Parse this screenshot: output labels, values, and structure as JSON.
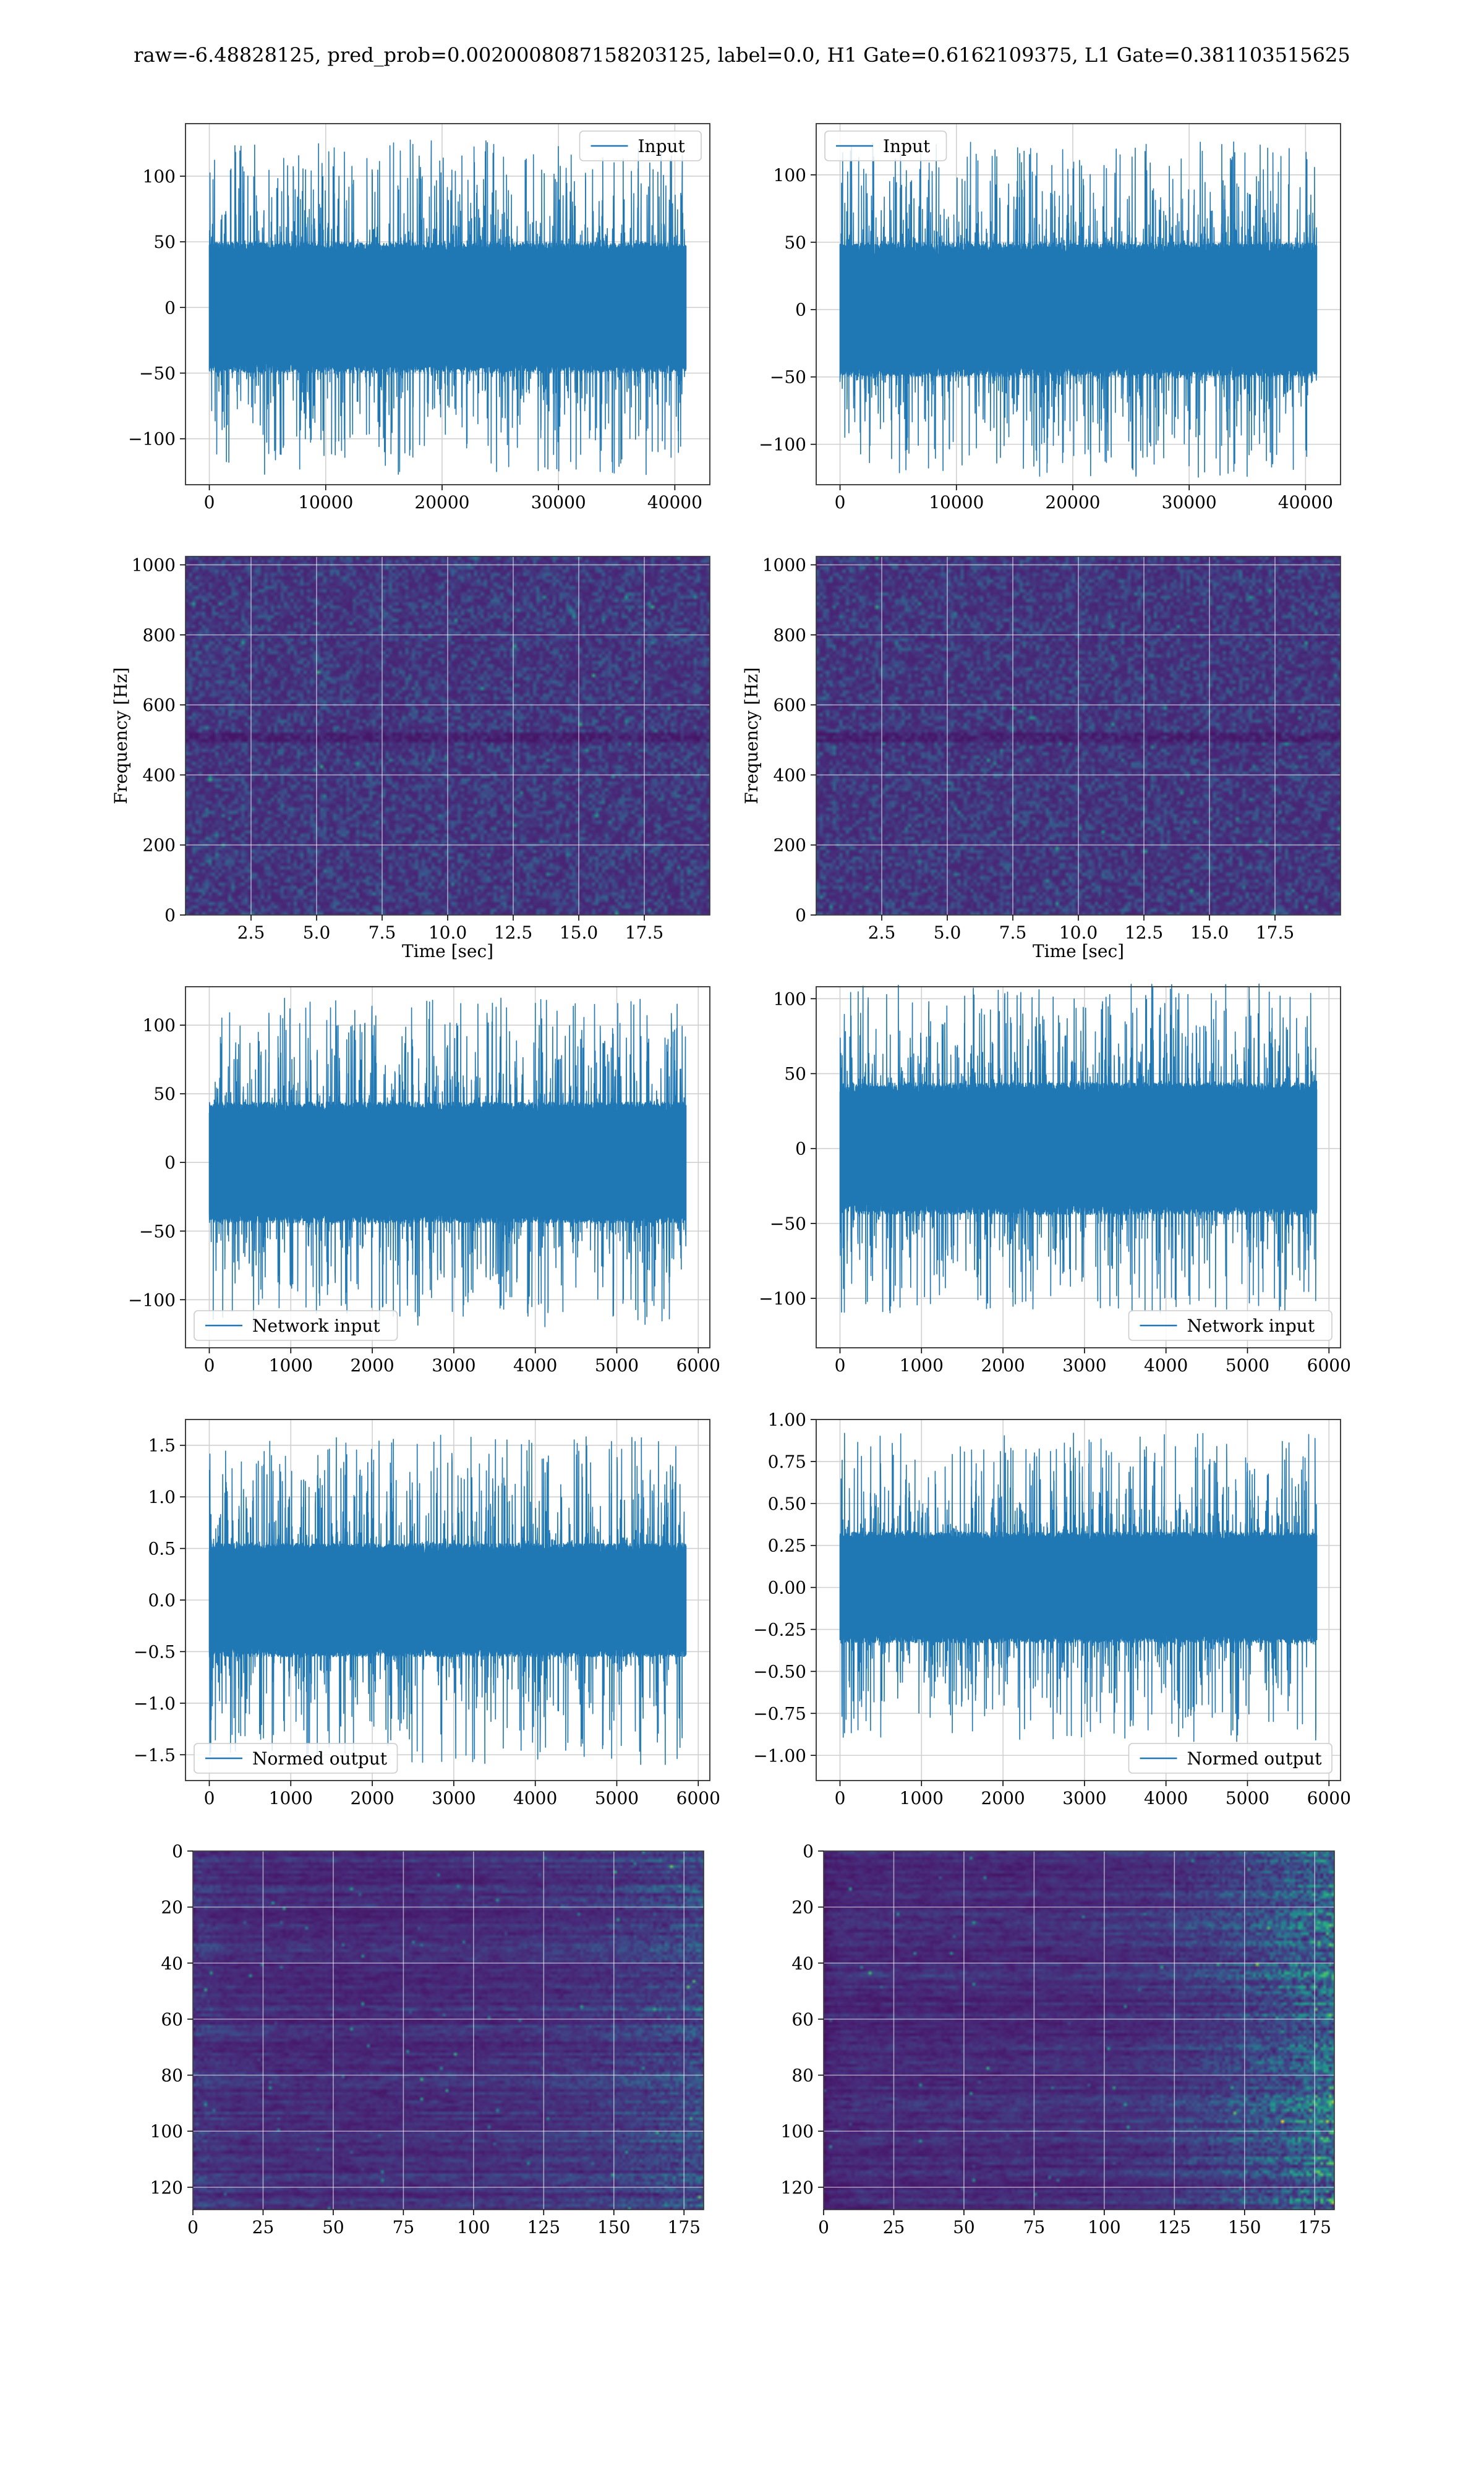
{
  "suptitle": "raw=-6.48828125, pred_prob=0.0020008087158203125, label=0.0, H1 Gate=0.6162109375, L1 Gate=0.381103515625",
  "colors": {
    "line": "#1f77b4",
    "grid": "#d0d0d0",
    "spines": "#333333",
    "viridis": [
      "#440154",
      "#482878",
      "#3e4989",
      "#31688e",
      "#26828e",
      "#1f9e89",
      "#35b779",
      "#6ece58",
      "#b5de2b",
      "#fde725"
    ]
  },
  "chart_data": [
    {
      "id": "input-left",
      "type": "line",
      "series": [
        {
          "name": "Input",
          "amplitude_core": 45,
          "amplitude_peak": 128,
          "n_samples": 40960
        }
      ],
      "legend": "top-right",
      "xlim": [
        -2048,
        43008
      ],
      "ylim": [
        -135,
        140
      ],
      "xticks": [
        0,
        10000,
        20000,
        30000,
        40000
      ],
      "xtick_labels": [
        "0",
        "10000",
        "20000",
        "30000",
        "40000"
      ],
      "yticks": [
        -100,
        -50,
        0,
        50,
        100
      ],
      "ytick_labels": [
        "−100",
        "−50",
        "0",
        "50",
        "100"
      ],
      "xlabel": "",
      "ylabel": "",
      "grid": true
    },
    {
      "id": "input-right",
      "type": "line",
      "series": [
        {
          "name": "Input",
          "amplitude_core": 45,
          "amplitude_peak": 125,
          "n_samples": 40960
        }
      ],
      "legend": "top-left",
      "xlim": [
        -2048,
        43008
      ],
      "ylim": [
        -130,
        138
      ],
      "xticks": [
        0,
        10000,
        20000,
        30000,
        40000
      ],
      "xtick_labels": [
        "0",
        "10000",
        "20000",
        "30000",
        "40000"
      ],
      "yticks": [
        -100,
        -50,
        0,
        50,
        100
      ],
      "ytick_labels": [
        "−100",
        "−50",
        "0",
        "50",
        "100"
      ],
      "xlabel": "",
      "ylabel": "",
      "grid": true
    },
    {
      "id": "spectrogram-left",
      "type": "heatmap",
      "xlim": [
        0,
        20
      ],
      "ylim": [
        0,
        1024
      ],
      "xticks": [
        2.5,
        5,
        7.5,
        10,
        12.5,
        15,
        17.5
      ],
      "xtick_labels": [
        "2.5",
        "5.0",
        "7.5",
        "10.0",
        "12.5",
        "15.0",
        "17.5"
      ],
      "yticks": [
        0,
        200,
        400,
        600,
        800,
        1000
      ],
      "ytick_labels": [
        "0",
        "200",
        "400",
        "600",
        "800",
        "1000"
      ],
      "xlabel": "Time [sec]",
      "ylabel": "Frequency [Hz]",
      "grid": true
    },
    {
      "id": "spectrogram-right",
      "type": "heatmap",
      "xlim": [
        0,
        20
      ],
      "ylim": [
        0,
        1024
      ],
      "xticks": [
        2.5,
        5,
        7.5,
        10,
        12.5,
        15,
        17.5
      ],
      "xtick_labels": [
        "2.5",
        "5.0",
        "7.5",
        "10.0",
        "12.5",
        "15.0",
        "17.5"
      ],
      "yticks": [
        0,
        200,
        400,
        600,
        800,
        1000
      ],
      "ytick_labels": [
        "0",
        "200",
        "400",
        "600",
        "800",
        "1000"
      ],
      "xlabel": "Time [sec]",
      "ylabel": "Frequency [Hz]",
      "grid": true
    },
    {
      "id": "network-input-left",
      "type": "line",
      "series": [
        {
          "name": "Network input",
          "amplitude_core": 40,
          "amplitude_peak": 120,
          "n_samples": 5850
        }
      ],
      "legend": "bottom-left",
      "xlim": [
        -292,
        6142
      ],
      "ylim": [
        -135,
        128
      ],
      "xticks": [
        0,
        1000,
        2000,
        3000,
        4000,
        5000,
        6000
      ],
      "xtick_labels": [
        "0",
        "1000",
        "2000",
        "3000",
        "4000",
        "5000",
        "6000"
      ],
      "yticks": [
        -100,
        -50,
        0,
        50,
        100
      ],
      "ytick_labels": [
        "−100",
        "−50",
        "0",
        "50",
        "100"
      ],
      "xlabel": "",
      "ylabel": "",
      "grid": true
    },
    {
      "id": "network-input-right",
      "type": "line",
      "series": [
        {
          "name": "Network input",
          "amplitude_core": 40,
          "amplitude_peak": 110,
          "n_samples": 5850
        }
      ],
      "legend": "bottom-right",
      "xlim": [
        -292,
        6142
      ],
      "ylim": [
        -133,
        108
      ],
      "xticks": [
        0,
        1000,
        2000,
        3000,
        4000,
        5000,
        6000
      ],
      "xtick_labels": [
        "0",
        "1000",
        "2000",
        "3000",
        "4000",
        "5000",
        "6000"
      ],
      "yticks": [
        -100,
        -50,
        0,
        50,
        100
      ],
      "ytick_labels": [
        "−100",
        "−50",
        "0",
        "50",
        "100"
      ],
      "xlabel": "",
      "ylabel": "",
      "grid": true
    },
    {
      "id": "normed-output-left",
      "type": "line",
      "series": [
        {
          "name": "Normed output",
          "amplitude_core": 0.5,
          "amplitude_peak": 1.6,
          "n_samples": 5850
        }
      ],
      "legend": "bottom-left",
      "xlim": [
        -292,
        6142
      ],
      "ylim": [
        -1.75,
        1.75
      ],
      "xticks": [
        0,
        1000,
        2000,
        3000,
        4000,
        5000,
        6000
      ],
      "xtick_labels": [
        "0",
        "1000",
        "2000",
        "3000",
        "4000",
        "5000",
        "6000"
      ],
      "yticks": [
        -1.5,
        -1.0,
        -0.5,
        0.0,
        0.5,
        1.0,
        1.5
      ],
      "ytick_labels": [
        "−1.5",
        "−1.0",
        "−0.5",
        "0.0",
        "0.5",
        "1.0",
        "1.5"
      ],
      "xlabel": "",
      "ylabel": "",
      "grid": true
    },
    {
      "id": "normed-output-right",
      "type": "line",
      "series": [
        {
          "name": "Normed output",
          "amplitude_core": 0.3,
          "amplitude_peak": 0.92,
          "n_samples": 5850
        }
      ],
      "legend": "bottom-right",
      "xlim": [
        -292,
        6142
      ],
      "ylim": [
        -1.15,
        1.0
      ],
      "xticks": [
        0,
        1000,
        2000,
        3000,
        4000,
        5000,
        6000
      ],
      "xtick_labels": [
        "0",
        "1000",
        "2000",
        "3000",
        "4000",
        "5000",
        "6000"
      ],
      "yticks": [
        -1.0,
        -0.75,
        -0.5,
        -0.25,
        0.0,
        0.25,
        0.5,
        0.75,
        1.0
      ],
      "ytick_labels": [
        "−1.00",
        "−0.75",
        "−0.50",
        "−0.25",
        "0.00",
        "0.25",
        "0.50",
        "0.75",
        "1.00"
      ],
      "xlabel": "",
      "ylabel": "",
      "grid": true
    },
    {
      "id": "feature-map-left",
      "type": "heatmap",
      "xlim": [
        0,
        182
      ],
      "ylim": [
        128,
        0
      ],
      "xticks": [
        0,
        25,
        50,
        75,
        100,
        125,
        150,
        175
      ],
      "xtick_labels": [
        "0",
        "25",
        "50",
        "75",
        "100",
        "125",
        "150",
        "175"
      ],
      "yticks": [
        0,
        20,
        40,
        60,
        80,
        100,
        120
      ],
      "ytick_labels": [
        "0",
        "20",
        "40",
        "60",
        "80",
        "100",
        "120"
      ],
      "xlabel": "",
      "ylabel": "",
      "grid": true
    },
    {
      "id": "feature-map-right",
      "type": "heatmap",
      "xlim": [
        0,
        182
      ],
      "ylim": [
        128,
        0
      ],
      "xticks": [
        0,
        25,
        50,
        75,
        100,
        125,
        150,
        175
      ],
      "xtick_labels": [
        "0",
        "25",
        "50",
        "75",
        "100",
        "125",
        "150",
        "175"
      ],
      "yticks": [
        0,
        20,
        40,
        60,
        80,
        100,
        120
      ],
      "ytick_labels": [
        "0",
        "20",
        "40",
        "60",
        "80",
        "100",
        "120"
      ],
      "xlabel": "",
      "ylabel": "",
      "grid": true
    }
  ]
}
